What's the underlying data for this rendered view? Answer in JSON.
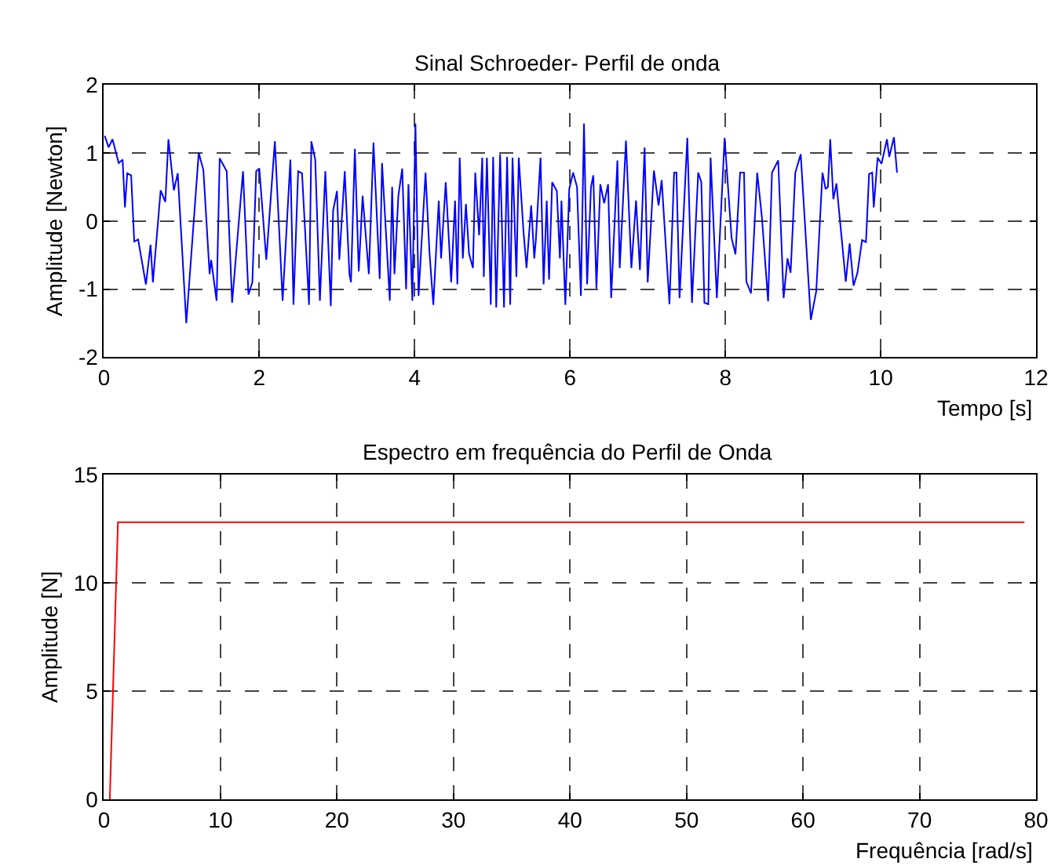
{
  "chart_data": [
    {
      "type": "line",
      "title": "Sinal Schroeder- Perfil de onda",
      "xlabel": "Tempo [s]",
      "ylabel": "Amplitude [Newton]",
      "xlim": [
        0,
        12
      ],
      "xticks": [
        0,
        2,
        4,
        6,
        8,
        10,
        12
      ],
      "ylim": [
        -2,
        2
      ],
      "yticks": [
        -2,
        -1,
        0,
        1,
        2
      ],
      "grid": true,
      "line_style": "solid",
      "series": [
        {
          "color": "#0000ff",
          "x": [
            0.01,
            0.06,
            0.11,
            0.19,
            0.24,
            0.27,
            0.3,
            0.35,
            0.39,
            0.44,
            0.54,
            0.6,
            0.63,
            0.73,
            0.79,
            0.83,
            0.9,
            0.95,
            1.06,
            1.22,
            1.28,
            1.36,
            1.38,
            1.45,
            1.49,
            1.58,
            1.65,
            1.79,
            1.86,
            1.91,
            1.96,
            2.0,
            2.09,
            2.2,
            2.3,
            2.4,
            2.44,
            2.5,
            2.55,
            2.64,
            2.67,
            2.72,
            2.78,
            2.85,
            2.92,
            2.95,
            3.0,
            3.03,
            3.1,
            3.16,
            3.18,
            3.23,
            3.28,
            3.33,
            3.41,
            3.47,
            3.55,
            3.58,
            3.68,
            3.71,
            3.74,
            3.79,
            3.84,
            3.89,
            3.92,
            3.97,
            4.01,
            4.05,
            4.14,
            4.19,
            4.24,
            4.31,
            4.34,
            4.4,
            4.47,
            4.52,
            4.55,
            4.58,
            4.62,
            4.66,
            4.7,
            4.75,
            4.78,
            4.83,
            4.87,
            4.89,
            4.93,
            4.98,
            5.01,
            5.05,
            5.1,
            5.15,
            5.19,
            5.23,
            5.26,
            5.31,
            5.34,
            5.4,
            5.44,
            5.5,
            5.54,
            5.56,
            5.62,
            5.66,
            5.7,
            5.73,
            5.77,
            5.83,
            5.87,
            5.89,
            5.94,
            5.99,
            6.04,
            6.09,
            6.14,
            6.18,
            6.22,
            6.27,
            6.3,
            6.34,
            6.39,
            6.44,
            6.49,
            6.53,
            6.61,
            6.64,
            6.72,
            6.79,
            6.85,
            6.9,
            6.96,
            7.0,
            7.08,
            7.14,
            7.18,
            7.28,
            7.34,
            7.37,
            7.41,
            7.51,
            7.57,
            7.65,
            7.69,
            7.73,
            7.78,
            7.81,
            7.89,
            7.99,
            8.08,
            8.13,
            8.19,
            8.24,
            8.27,
            8.33,
            8.41,
            8.47,
            8.55,
            8.6,
            8.68,
            8.75,
            8.8,
            8.84,
            8.9,
            8.97,
            9.1,
            9.17,
            9.25,
            9.29,
            9.32,
            9.35,
            9.39,
            9.43,
            9.55,
            9.6,
            9.65,
            9.7,
            9.76,
            9.81,
            9.85,
            9.89,
            9.91,
            9.96,
            10.01,
            10.08,
            10.11,
            10.17,
            10.21
          ],
          "values": [
            1.25,
            1.08,
            1.2,
            0.85,
            0.9,
            0.2,
            0.7,
            0.67,
            -0.3,
            -0.27,
            -0.93,
            -0.35,
            -0.9,
            0.45,
            0.28,
            1.2,
            0.45,
            0.7,
            -1.5,
            1.0,
            0.75,
            -0.78,
            -0.57,
            -1.17,
            0.92,
            0.73,
            -1.2,
            0.73,
            -1.08,
            -0.9,
            0.73,
            0.77,
            -0.57,
            1.17,
            -1.17,
            0.9,
            -1.23,
            0.73,
            0.7,
            -1.23,
            1.17,
            0.9,
            -1.17,
            0.73,
            -1.25,
            0.15,
            0.44,
            -0.57,
            0.73,
            -0.78,
            -0.9,
            1.06,
            -0.74,
            0.37,
            -0.78,
            1.15,
            -0.85,
            0.85,
            -1.17,
            0.5,
            -0.78,
            0.37,
            0.77,
            -1.0,
            0.54,
            -1.17,
            1.43,
            -1.1,
            0.71,
            -0.45,
            -1.23,
            0.3,
            -0.55,
            0.57,
            -0.9,
            0.3,
            -0.93,
            0.93,
            -0.55,
            0.25,
            -0.48,
            -0.69,
            0.71,
            -0.21,
            0.93,
            -0.82,
            0.93,
            -1.23,
            0.94,
            -1.27,
            0.98,
            -1.27,
            0.94,
            -1.23,
            0.93,
            -0.82,
            0.93,
            -0.14,
            -0.69,
            0.23,
            -0.55,
            -0.28,
            0.93,
            -0.93,
            0.3,
            -0.86,
            0.57,
            0.44,
            -0.55,
            0.3,
            -1.23,
            0.47,
            0.71,
            0.5,
            -1.1,
            1.43,
            -0.93,
            0.5,
            0.67,
            -0.99,
            0.54,
            0.26,
            0.54,
            -1.13,
            0.89,
            -0.69,
            1.18,
            -0.69,
            0.3,
            -0.72,
            1.08,
            -0.9,
            0.74,
            0.23,
            0.6,
            -1.22,
            0.71,
            0.71,
            -1.13,
            1.22,
            -1.2,
            0.71,
            0.57,
            -1.2,
            -1.22,
            0.93,
            -1.13,
            1.22,
            -0.25,
            -0.49,
            0.71,
            0.71,
            -0.89,
            -1.06,
            0.71,
            0.06,
            -1.18,
            0.71,
            0.89,
            -1.13,
            -0.55,
            -0.76,
            0.71,
            0.98,
            -1.45,
            -1.03,
            0.71,
            0.47,
            0.5,
            1.2,
            0.32,
            0.55,
            -0.89,
            -0.33,
            -0.95,
            -0.76,
            -0.28,
            -0.31,
            0.69,
            0.71,
            0.2,
            0.93,
            0.84,
            1.2,
            0.94,
            1.23,
            0.71
          ]
        }
      ]
    },
    {
      "type": "line",
      "title": "Espectro em frequência do Perfil de Onda",
      "xlabel": "Frequência [rad/s]",
      "ylabel": "Amplitude [N]",
      "xlim": [
        0,
        80
      ],
      "xticks": [
        0,
        10,
        20,
        30,
        40,
        50,
        60,
        70,
        80
      ],
      "ylim": [
        0,
        15
      ],
      "yticks": [
        0,
        5,
        10,
        15
      ],
      "grid": true,
      "line_style": "solid",
      "series": [
        {
          "color": "#ff0000",
          "x": [
            0.5,
            1.2,
            79
          ],
          "values": [
            0,
            12.8,
            12.8
          ]
        }
      ]
    }
  ]
}
